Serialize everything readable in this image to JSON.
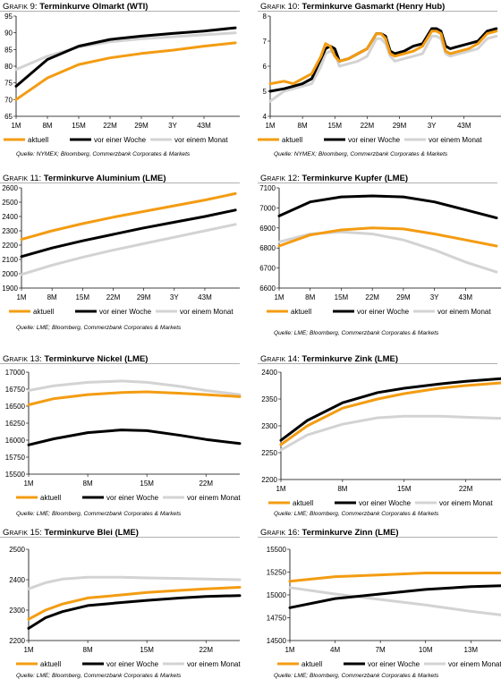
{
  "theme": {
    "aktuell": "#f39c12",
    "week": "#000000",
    "month": "#d3d3d3"
  },
  "charts": [
    {
      "label": "Grafik 9:",
      "title": "Terminkurve Olmarkt (WTI)",
      "source": "Quelle: NYMEX; Bloomberg, Commerzbank Corporates & Markets",
      "chart_data": {
        "type": "line",
        "x": [
          1,
          8,
          15,
          22,
          29,
          36,
          43,
          50
        ],
        "categories": [
          "1M",
          "8M",
          "15M",
          "22M",
          "29M",
          "3Y",
          "43M"
        ],
        "ylim": [
          65,
          95
        ],
        "yticks": [
          65,
          70,
          75,
          80,
          85,
          90,
          95
        ],
        "legend": [
          "aktuell",
          "vor einer Woche",
          "vor einem Monat"
        ],
        "series": [
          {
            "name": "aktuell",
            "values": [
              70,
              76.5,
              80.5,
              82.5,
              83.8,
              84.8,
              86,
              87
            ]
          },
          {
            "name": "vor einer Woche",
            "values": [
              74,
              82,
              86,
              88,
              89,
              89.8,
              90.5,
              91.5
            ]
          },
          {
            "name": "vor einem Monat",
            "values": [
              79,
              83,
              85.7,
              87.3,
              88.2,
              88.8,
              89.4,
              90
            ]
          }
        ]
      }
    },
    {
      "label": "Grafik 10:",
      "title": "Terminkurve Gasmarkt (Henry Hub)",
      "source": "Quelle: NYMEX; Bloomberg, Commerzbank Corporates & Markets",
      "chart_data": {
        "type": "line",
        "x": [
          1,
          4,
          6,
          8,
          10,
          12,
          13,
          14,
          15,
          16,
          18,
          20,
          22,
          24,
          25,
          26,
          27,
          28,
          30,
          32,
          34,
          36,
          37,
          38,
          39,
          40,
          42,
          44,
          46,
          48,
          50
        ],
        "categories": [
          "1M",
          "8M",
          "15M",
          "22M",
          "29M",
          "3Y",
          "43M"
        ],
        "ylim": [
          4,
          8
        ],
        "yticks": [
          4,
          5,
          6,
          7,
          8
        ],
        "legend": [
          "aktuell",
          "vor einer Woche",
          "vor einem Monat"
        ],
        "series": [
          {
            "name": "aktuell",
            "values": [
              5.3,
              5.4,
              5.3,
              5.5,
              5.7,
              6.4,
              6.9,
              6.8,
              6.4,
              6.2,
              6.3,
              6.5,
              6.7,
              7.3,
              7.3,
              7.1,
              6.5,
              6.4,
              6.5,
              6.6,
              6.8,
              7.4,
              7.4,
              7.3,
              6.6,
              6.5,
              6.6,
              6.7,
              6.9,
              7.3,
              7.4
            ]
          },
          {
            "name": "vor einer Woche",
            "values": [
              5.0,
              5.1,
              5.2,
              5.3,
              5.5,
              6.3,
              6.7,
              6.8,
              6.7,
              6.2,
              6.3,
              6.5,
              6.7,
              7.3,
              7.3,
              7.2,
              6.6,
              6.5,
              6.6,
              6.8,
              6.9,
              7.5,
              7.5,
              7.4,
              6.8,
              6.7,
              6.8,
              6.9,
              7.0,
              7.4,
              7.5
            ]
          },
          {
            "name": "vor einem Monat",
            "values": [
              4.6,
              5.0,
              5.1,
              5.2,
              5.3,
              6.0,
              6.5,
              6.6,
              6.5,
              6.0,
              6.1,
              6.2,
              6.4,
              7.1,
              7.1,
              6.9,
              6.4,
              6.2,
              6.3,
              6.4,
              6.5,
              7.2,
              7.2,
              7.1,
              6.5,
              6.4,
              6.5,
              6.6,
              6.7,
              7.1,
              7.2
            ]
          }
        ]
      }
    },
    {
      "label": "Grafik 11:",
      "title": "Terminkurve Aluminium (LME)",
      "source": "Quelle: LME; Bloomberg, Commerzbank Corporates & Markets",
      "chart_data": {
        "type": "line",
        "x": [
          1,
          8,
          15,
          22,
          29,
          36,
          43,
          50
        ],
        "categories": [
          "1M",
          "8M",
          "15M",
          "22M",
          "29M",
          "3Y",
          "43M"
        ],
        "ylim": [
          1900,
          2600
        ],
        "yticks": [
          1900,
          2000,
          2100,
          2200,
          2300,
          2400,
          2500,
          2600
        ],
        "legend": [
          "aktuell",
          "vor einer Woche",
          "vor einem Monat"
        ],
        "series": [
          {
            "name": "aktuell",
            "values": [
              2240,
              2300,
              2350,
              2395,
              2435,
              2475,
              2515,
              2560
            ]
          },
          {
            "name": "vor einer Woche",
            "values": [
              2120,
              2180,
              2230,
              2275,
              2320,
              2360,
              2400,
              2445
            ]
          },
          {
            "name": "vor einem Monat",
            "values": [
              1995,
              2060,
              2115,
              2165,
              2210,
              2255,
              2300,
              2345
            ]
          }
        ]
      }
    },
    {
      "label": "Grafik 12:",
      "title": "Terminkurve Kupfer (LME)",
      "source": "Quelle: LME; Bloomberg, Commerzbank Corporates & Markets",
      "chart_data": {
        "type": "line",
        "x": [
          1,
          8,
          15,
          22,
          29,
          36,
          43,
          50
        ],
        "categories": [
          "1M",
          "8M",
          "15M",
          "22M",
          "29M",
          "3Y",
          "43M"
        ],
        "ylim": [
          6600,
          7100
        ],
        "yticks": [
          6600,
          6700,
          6800,
          6900,
          7000,
          7100
        ],
        "legend": [
          "aktuell",
          "vor einer Woche",
          "vor einem Monat"
        ],
        "series": [
          {
            "name": "aktuell",
            "values": [
              6810,
              6865,
              6890,
              6900,
              6895,
              6870,
              6840,
              6810
            ]
          },
          {
            "name": "vor einer Woche",
            "values": [
              6960,
              7030,
              7055,
              7060,
              7055,
              7030,
              6990,
              6950
            ]
          },
          {
            "name": "vor einem Monat",
            "values": [
              6830,
              6870,
              6880,
              6870,
              6840,
              6790,
              6730,
              6680
            ]
          }
        ]
      }
    },
    {
      "label": "Grafik 13:",
      "title": "Terminkurve Nickel (LME)",
      "source": "Quelle: LME; Bloomberg, Commerzbank Corporates & Markets",
      "chart_data": {
        "type": "line",
        "x": [
          1,
          4,
          8,
          12,
          15,
          19,
          22,
          26
        ],
        "categories": [
          "1M",
          "8M",
          "15M",
          "22M"
        ],
        "ylim": [
          15500,
          17000
        ],
        "yticks": [
          15500,
          15750,
          16000,
          16250,
          16500,
          16750,
          17000
        ],
        "legend": [
          "aktuell",
          "vor einer Woche",
          "vor einem Monat"
        ],
        "series": [
          {
            "name": "aktuell",
            "values": [
              16520,
              16610,
              16670,
              16700,
              16710,
              16690,
              16670,
              16640
            ]
          },
          {
            "name": "vor einer Woche",
            "values": [
              15930,
              16020,
              16110,
              16150,
              16140,
              16070,
              16010,
              15950
            ]
          },
          {
            "name": "vor einem Monat",
            "values": [
              16730,
              16800,
              16850,
              16870,
              16850,
              16790,
              16730,
              16670
            ]
          }
        ]
      }
    },
    {
      "label": "Grafik 14:",
      "title": "Terminkurve Zink (LME)",
      "source": "Quelle: LME; Bloomberg, Commerzbank Corporates & Markets",
      "chart_data": {
        "type": "line",
        "x": [
          1,
          4,
          8,
          12,
          15,
          19,
          22,
          26
        ],
        "categories": [
          "1M",
          "8M",
          "15M",
          "22M"
        ],
        "ylim": [
          2200,
          2400
        ],
        "yticks": [
          2200,
          2250,
          2300,
          2350,
          2400
        ],
        "legend": [
          "aktuell",
          "vor einer Woche",
          "vor einem Monat"
        ],
        "series": [
          {
            "name": "aktuell",
            "values": [
              2265,
              2300,
              2333,
              2350,
              2360,
              2370,
              2375,
              2380
            ]
          },
          {
            "name": "vor einer Woche",
            "values": [
              2273,
              2310,
              2343,
              2362,
              2370,
              2378,
              2383,
              2388
            ]
          },
          {
            "name": "vor einem Monat",
            "values": [
              2255,
              2283,
              2303,
              2315,
              2318,
              2318,
              2316,
              2314
            ]
          }
        ]
      }
    },
    {
      "label": "Grafik 15:",
      "title": "Terminkurve Blei (LME)",
      "source": "Quelle: LME; Bloomberg, Commerzbank Corporates & Markets",
      "chart_data": {
        "type": "line",
        "x": [
          1,
          3,
          5,
          8,
          10,
          12,
          15,
          19,
          22,
          26
        ],
        "categories": [
          "1M",
          "8M",
          "15M",
          "22M"
        ],
        "ylim": [
          2200,
          2500
        ],
        "yticks": [
          2200,
          2300,
          2400,
          2500
        ],
        "legend": [
          "aktuell",
          "vor einer Woche",
          "vor einem Monat"
        ],
        "series": [
          {
            "name": "aktuell",
            "values": [
              2270,
              2300,
              2320,
              2340,
              2345,
              2350,
              2358,
              2365,
              2370,
              2375
            ]
          },
          {
            "name": "vor einer Woche",
            "values": [
              2240,
              2275,
              2295,
              2315,
              2320,
              2325,
              2332,
              2340,
              2345,
              2348
            ]
          },
          {
            "name": "vor einem Monat",
            "values": [
              2370,
              2390,
              2402,
              2408,
              2408,
              2408,
              2406,
              2404,
              2402,
              2400
            ]
          }
        ]
      }
    },
    {
      "label": "Grafik 16:",
      "title": "Terminkurve Zinn (LME)",
      "source": "Quelle: LME; Bloomberg, Commerzbank Corporates & Markets",
      "chart_data": {
        "type": "line",
        "x": [
          1,
          4,
          7,
          10,
          13,
          15
        ],
        "categories": [
          "1M",
          "4M",
          "7M",
          "10M",
          "13M"
        ],
        "ylim": [
          14500,
          15500
        ],
        "yticks": [
          14500,
          14750,
          15000,
          15250,
          15500
        ],
        "legend": [
          "aktuell",
          "vor einer Woche",
          "vor einem Monat"
        ],
        "series": [
          {
            "name": "aktuell",
            "values": [
              15150,
              15200,
              15220,
              15240,
              15240,
              15240
            ]
          },
          {
            "name": "vor einer Woche",
            "values": [
              14860,
              14960,
              15010,
              15060,
              15090,
              15100
            ]
          },
          {
            "name": "vor einem Monat",
            "values": [
              15080,
              15010,
              14950,
              14890,
              14820,
              14780
            ]
          }
        ]
      }
    }
  ]
}
